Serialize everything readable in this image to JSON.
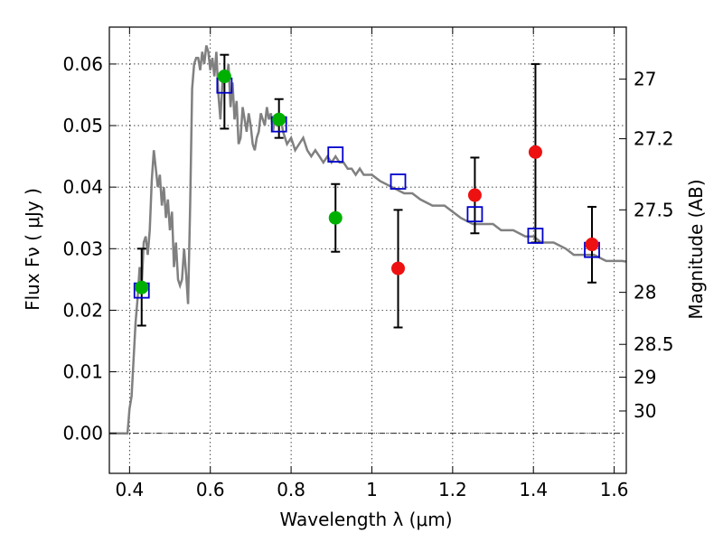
{
  "chart_data": {
    "type": "scatter",
    "title": "",
    "xlabel": "Wavelength  λ (μm)",
    "ylabel": "Flux  Fν  ( μJy )",
    "ylabel_right": "Magnitude (AB)",
    "xlim": [
      0.35,
      1.63
    ],
    "ylim": [
      -0.0065,
      0.066
    ],
    "xticks": [
      0.4,
      0.6,
      0.8,
      1.0,
      1.2,
      1.4,
      1.6
    ],
    "xtick_labels": [
      "0.4",
      "0.6",
      "0.8",
      "1",
      "1.2",
      "1.4",
      "1.6"
    ],
    "yticks": [
      0.0,
      0.01,
      0.02,
      0.03,
      0.04,
      0.05,
      0.06
    ],
    "ytick_labels": [
      "0.00",
      "0.01",
      "0.02",
      "0.03",
      "0.04",
      "0.05",
      "0.06"
    ],
    "right_ticks": [
      {
        "mag": 27,
        "label": "27"
      },
      {
        "mag": 27.2,
        "label": "27.2"
      },
      {
        "mag": 27.5,
        "label": "27.5"
      },
      {
        "mag": 28,
        "label": "28"
      },
      {
        "mag": 28.5,
        "label": "28.5"
      },
      {
        "mag": 29,
        "label": "29"
      },
      {
        "mag": 30,
        "label": "30"
      }
    ],
    "grid": true,
    "colors": {
      "model": "#808080",
      "synthetic": "#0000cc",
      "green": "#00b000",
      "red": "#ee1111",
      "errorbar": "#000000"
    },
    "series": [
      {
        "kind": "model-spectrum",
        "x": [
          0.35,
          0.36,
          0.38,
          0.39,
          0.395,
          0.4,
          0.405,
          0.41,
          0.415,
          0.42,
          0.425,
          0.43,
          0.435,
          0.44,
          0.445,
          0.45,
          0.455,
          0.46,
          0.465,
          0.47,
          0.475,
          0.48,
          0.485,
          0.49,
          0.495,
          0.5,
          0.505,
          0.51,
          0.515,
          0.52,
          0.525,
          0.53,
          0.535,
          0.54,
          0.545,
          0.55,
          0.555,
          0.56,
          0.565,
          0.57,
          0.575,
          0.58,
          0.585,
          0.59,
          0.595,
          0.6,
          0.605,
          0.61,
          0.615,
          0.62,
          0.625,
          0.63,
          0.635,
          0.64,
          0.645,
          0.65,
          0.655,
          0.66,
          0.665,
          0.67,
          0.675,
          0.68,
          0.685,
          0.69,
          0.695,
          0.7,
          0.705,
          0.71,
          0.715,
          0.72,
          0.725,
          0.73,
          0.735,
          0.74,
          0.745,
          0.75,
          0.755,
          0.76,
          0.765,
          0.77,
          0.775,
          0.78,
          0.785,
          0.79,
          0.8,
          0.81,
          0.82,
          0.83,
          0.84,
          0.85,
          0.86,
          0.87,
          0.88,
          0.89,
          0.9,
          0.91,
          0.92,
          0.93,
          0.94,
          0.95,
          0.96,
          0.97,
          0.98,
          0.99,
          1.0,
          1.02,
          1.05,
          1.08,
          1.1,
          1.12,
          1.15,
          1.18,
          1.2,
          1.22,
          1.25,
          1.28,
          1.3,
          1.32,
          1.35,
          1.38,
          1.4,
          1.42,
          1.45,
          1.48,
          1.5,
          1.52,
          1.55,
          1.58,
          1.6,
          1.62,
          1.63
        ],
        "y": [
          0.0,
          0.0,
          0.0,
          0.0,
          0.0,
          0.004,
          0.006,
          0.012,
          0.018,
          0.022,
          0.027,
          0.024,
          0.031,
          0.032,
          0.029,
          0.033,
          0.041,
          0.046,
          0.043,
          0.04,
          0.042,
          0.037,
          0.04,
          0.035,
          0.038,
          0.033,
          0.036,
          0.027,
          0.031,
          0.025,
          0.024,
          0.025,
          0.03,
          0.026,
          0.021,
          0.037,
          0.056,
          0.06,
          0.061,
          0.061,
          0.059,
          0.062,
          0.06,
          0.063,
          0.062,
          0.059,
          0.061,
          0.058,
          0.062,
          0.055,
          0.051,
          0.057,
          0.058,
          0.057,
          0.06,
          0.053,
          0.057,
          0.051,
          0.054,
          0.047,
          0.048,
          0.053,
          0.051,
          0.049,
          0.052,
          0.05,
          0.047,
          0.046,
          0.048,
          0.049,
          0.052,
          0.051,
          0.05,
          0.053,
          0.051,
          0.052,
          0.049,
          0.051,
          0.05,
          0.05,
          0.051,
          0.049,
          0.048,
          0.047,
          0.048,
          0.046,
          0.047,
          0.048,
          0.046,
          0.045,
          0.046,
          0.045,
          0.044,
          0.045,
          0.044,
          0.045,
          0.044,
          0.044,
          0.043,
          0.043,
          0.042,
          0.043,
          0.042,
          0.042,
          0.042,
          0.041,
          0.04,
          0.039,
          0.039,
          0.038,
          0.037,
          0.037,
          0.036,
          0.035,
          0.034,
          0.034,
          0.034,
          0.033,
          0.033,
          0.032,
          0.032,
          0.031,
          0.031,
          0.03,
          0.029,
          0.029,
          0.029,
          0.028,
          0.028,
          0.028,
          0.0279
        ]
      },
      {
        "kind": "synthetic-photometry",
        "x": [
          0.43,
          0.635,
          0.77,
          0.91,
          1.065,
          1.255,
          1.405,
          1.545
        ],
        "y": [
          0.0232,
          0.0565,
          0.0502,
          0.0453,
          0.0409,
          0.0356,
          0.0321,
          0.0298
        ]
      },
      {
        "kind": "observed-green",
        "x": [
          0.43,
          0.635,
          0.77,
          0.91
        ],
        "y": [
          0.0237,
          0.058,
          0.051,
          0.035
        ],
        "yerr_low": [
          0.0175,
          0.0495,
          0.048,
          0.0295
        ],
        "yerr_high": [
          0.03,
          0.0615,
          0.0543,
          0.0405
        ]
      },
      {
        "kind": "observed-red",
        "x": [
          1.065,
          1.255,
          1.405,
          1.545
        ],
        "y": [
          0.0268,
          0.0387,
          0.0457,
          0.0307
        ],
        "yerr_low": [
          0.0172,
          0.0325,
          0.031,
          0.0245
        ],
        "yerr_high": [
          0.0363,
          0.0448,
          0.06,
          0.0368
        ]
      }
    ]
  }
}
